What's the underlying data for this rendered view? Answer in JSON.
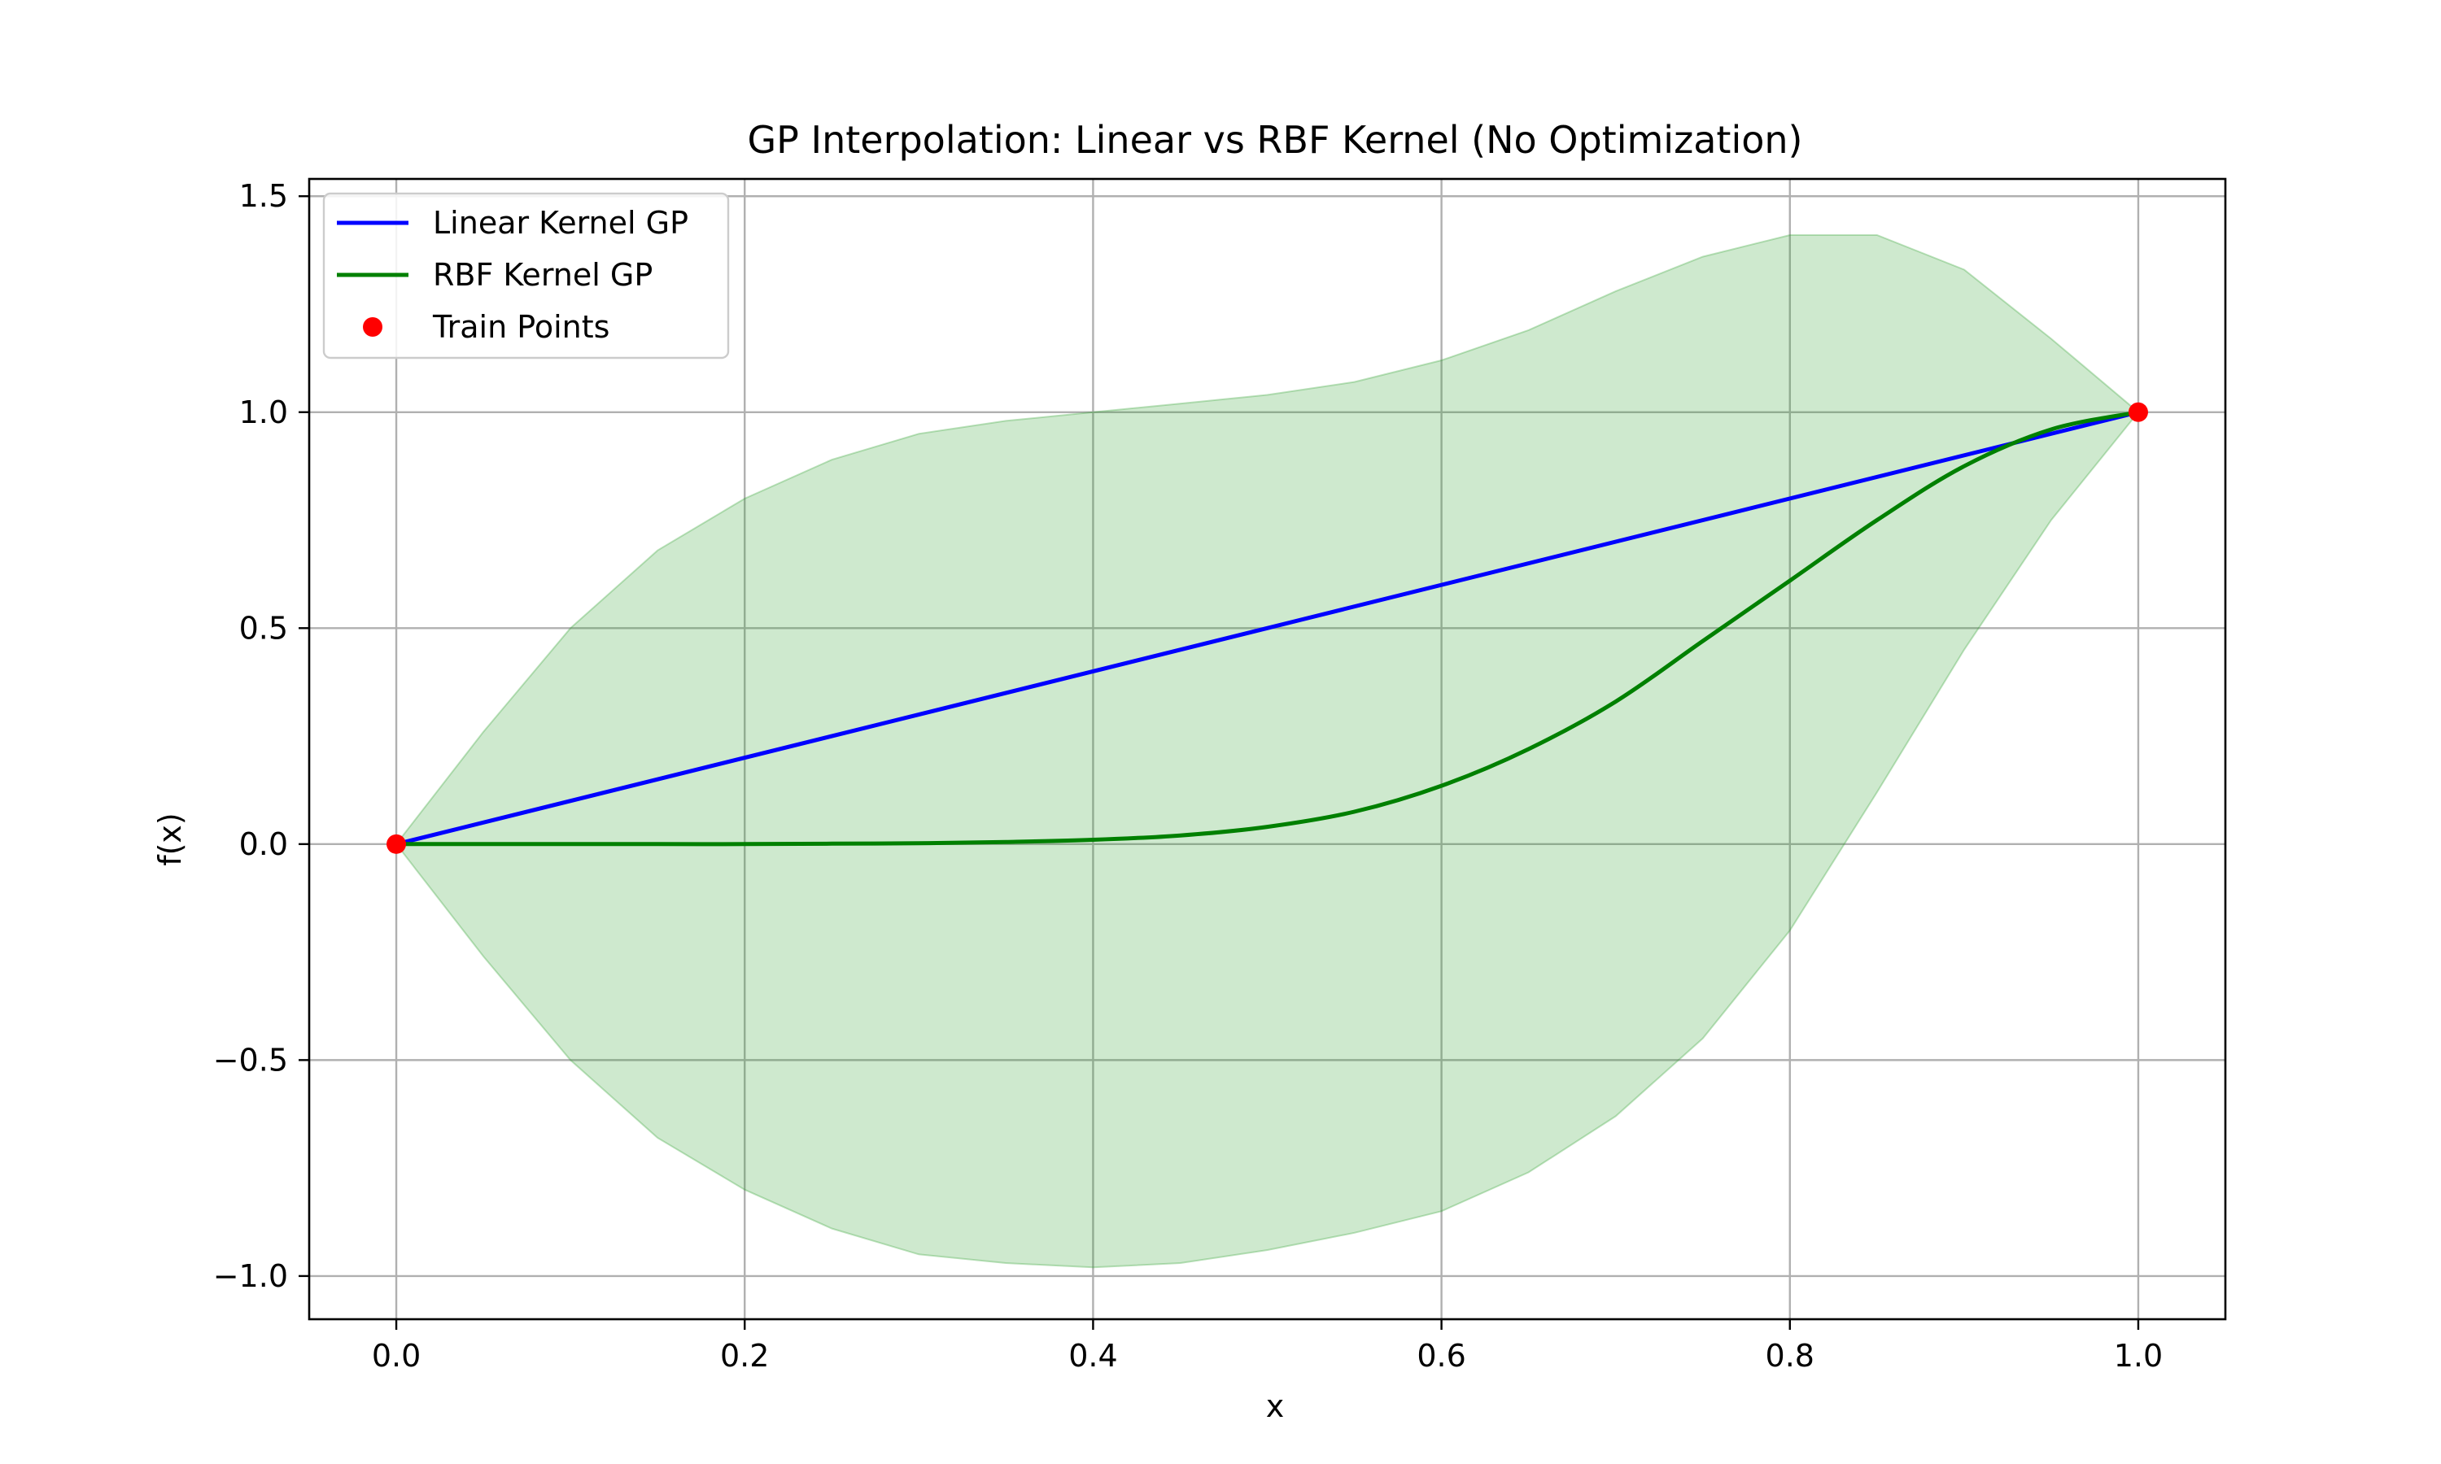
{
  "chart_data": {
    "type": "line",
    "title": "GP Interpolation: Linear vs RBF Kernel (No Optimization)",
    "xlabel": "x",
    "ylabel": "f(x)",
    "xlim": [
      -0.05,
      1.05
    ],
    "ylim": [
      -1.1,
      1.54
    ],
    "grid": true,
    "legend_position": "top-left",
    "x_ticks": [
      0.0,
      0.2,
      0.4,
      0.6,
      0.8,
      1.0
    ],
    "x_tick_labels": [
      "0.0",
      "0.2",
      "0.4",
      "0.6",
      "0.8",
      "1.0"
    ],
    "y_ticks": [
      -1.0,
      -0.5,
      0.0,
      0.5,
      1.0,
      1.5
    ],
    "y_tick_labels": [
      "−1.0",
      "−0.5",
      "0.0",
      "0.5",
      "1.0",
      "1.5"
    ],
    "series": [
      {
        "name": "Linear Kernel GP",
        "kind": "line",
        "color": "#0000ff",
        "x": [
          0.0,
          1.0
        ],
        "y": [
          0.0,
          1.0
        ]
      },
      {
        "name": "RBF Kernel GP",
        "kind": "line",
        "color": "#008000",
        "x": [
          0.0,
          0.05,
          0.1,
          0.15,
          0.2,
          0.25,
          0.3,
          0.35,
          0.4,
          0.45,
          0.5,
          0.55,
          0.6,
          0.65,
          0.7,
          0.75,
          0.8,
          0.85,
          0.9,
          0.95,
          1.0
        ],
        "y": [
          0.0,
          0.0,
          0.0,
          0.0,
          0.0,
          0.001,
          0.002,
          0.005,
          0.01,
          0.02,
          0.04,
          0.075,
          0.135,
          0.22,
          0.33,
          0.47,
          0.61,
          0.75,
          0.875,
          0.96,
          1.0
        ]
      },
      {
        "name": "Train Points",
        "kind": "scatter",
        "color": "#ff0000",
        "x": [
          0.0,
          1.0
        ],
        "y": [
          0.0,
          1.0
        ]
      }
    ],
    "confidence_band": {
      "series": "RBF Kernel GP",
      "color": "#2ca02c",
      "x": [
        0.0,
        0.05,
        0.1,
        0.15,
        0.2,
        0.25,
        0.3,
        0.35,
        0.4,
        0.45,
        0.5,
        0.55,
        0.6,
        0.65,
        0.7,
        0.75,
        0.8,
        0.85,
        0.9,
        0.95,
        1.0
      ],
      "upper": [
        0.0,
        0.26,
        0.5,
        0.68,
        0.8,
        0.89,
        0.95,
        0.98,
        1.0,
        1.02,
        1.04,
        1.07,
        1.12,
        1.19,
        1.28,
        1.36,
        1.41,
        1.41,
        1.33,
        1.17,
        1.0
      ],
      "lower": [
        0.0,
        -0.26,
        -0.5,
        -0.68,
        -0.8,
        -0.89,
        -0.95,
        -0.97,
        -0.98,
        -0.97,
        -0.94,
        -0.9,
        -0.85,
        -0.76,
        -0.63,
        -0.45,
        -0.2,
        0.12,
        0.45,
        0.75,
        1.0
      ]
    }
  }
}
